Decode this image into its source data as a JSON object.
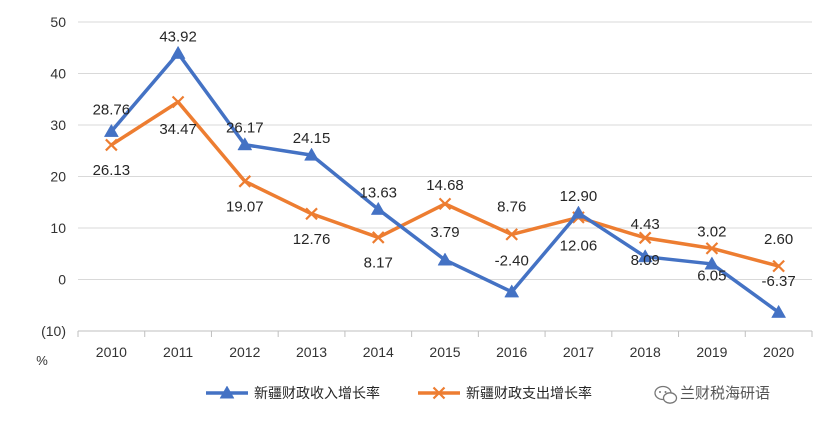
{
  "chart_data": {
    "type": "line",
    "x": [
      "2010",
      "2011",
      "2012",
      "2013",
      "2014",
      "2015",
      "2016",
      "2017",
      "2018",
      "2019",
      "2020"
    ],
    "ylim": [
      -10,
      50
    ],
    "yticks": [
      {
        "value": 50,
        "label": "50"
      },
      {
        "value": 40,
        "label": "40"
      },
      {
        "value": 30,
        "label": "30"
      },
      {
        "value": 20,
        "label": "20"
      },
      {
        "value": 10,
        "label": "10"
      },
      {
        "value": 0,
        "label": "0"
      },
      {
        "value": -10,
        "label": "(10)",
        "color": "#ff0000"
      }
    ],
    "yunit": "%",
    "grid": true,
    "legend_position": "bottom",
    "series": [
      {
        "name": "新疆财政收入增长率",
        "color": "#4472c4",
        "marker": "triangle",
        "values": [
          28.76,
          43.92,
          26.17,
          24.15,
          13.63,
          3.79,
          -2.4,
          12.9,
          4.43,
          3.02,
          -6.37
        ],
        "labels": [
          "28.76",
          "43.92",
          "26.17",
          "24.15",
          "13.63",
          "3.79",
          "-2.40",
          "12.90",
          "4.43",
          "3.02",
          "-6.37"
        ]
      },
      {
        "name": "新疆财政支出增长率",
        "color": "#ed7d31",
        "marker": "x",
        "values": [
          26.13,
          34.47,
          19.07,
          12.76,
          8.17,
          14.68,
          8.76,
          12.06,
          8.09,
          6.05,
          2.6
        ],
        "labels": [
          "26.13",
          "34.47",
          "19.07",
          "12.76",
          "8.17",
          "14.68",
          "8.76",
          "12.06",
          "8.09",
          "6.05",
          "2.60"
        ]
      }
    ]
  },
  "watermark": {
    "text": "兰财税海研语",
    "icon": "wechat-icon"
  }
}
